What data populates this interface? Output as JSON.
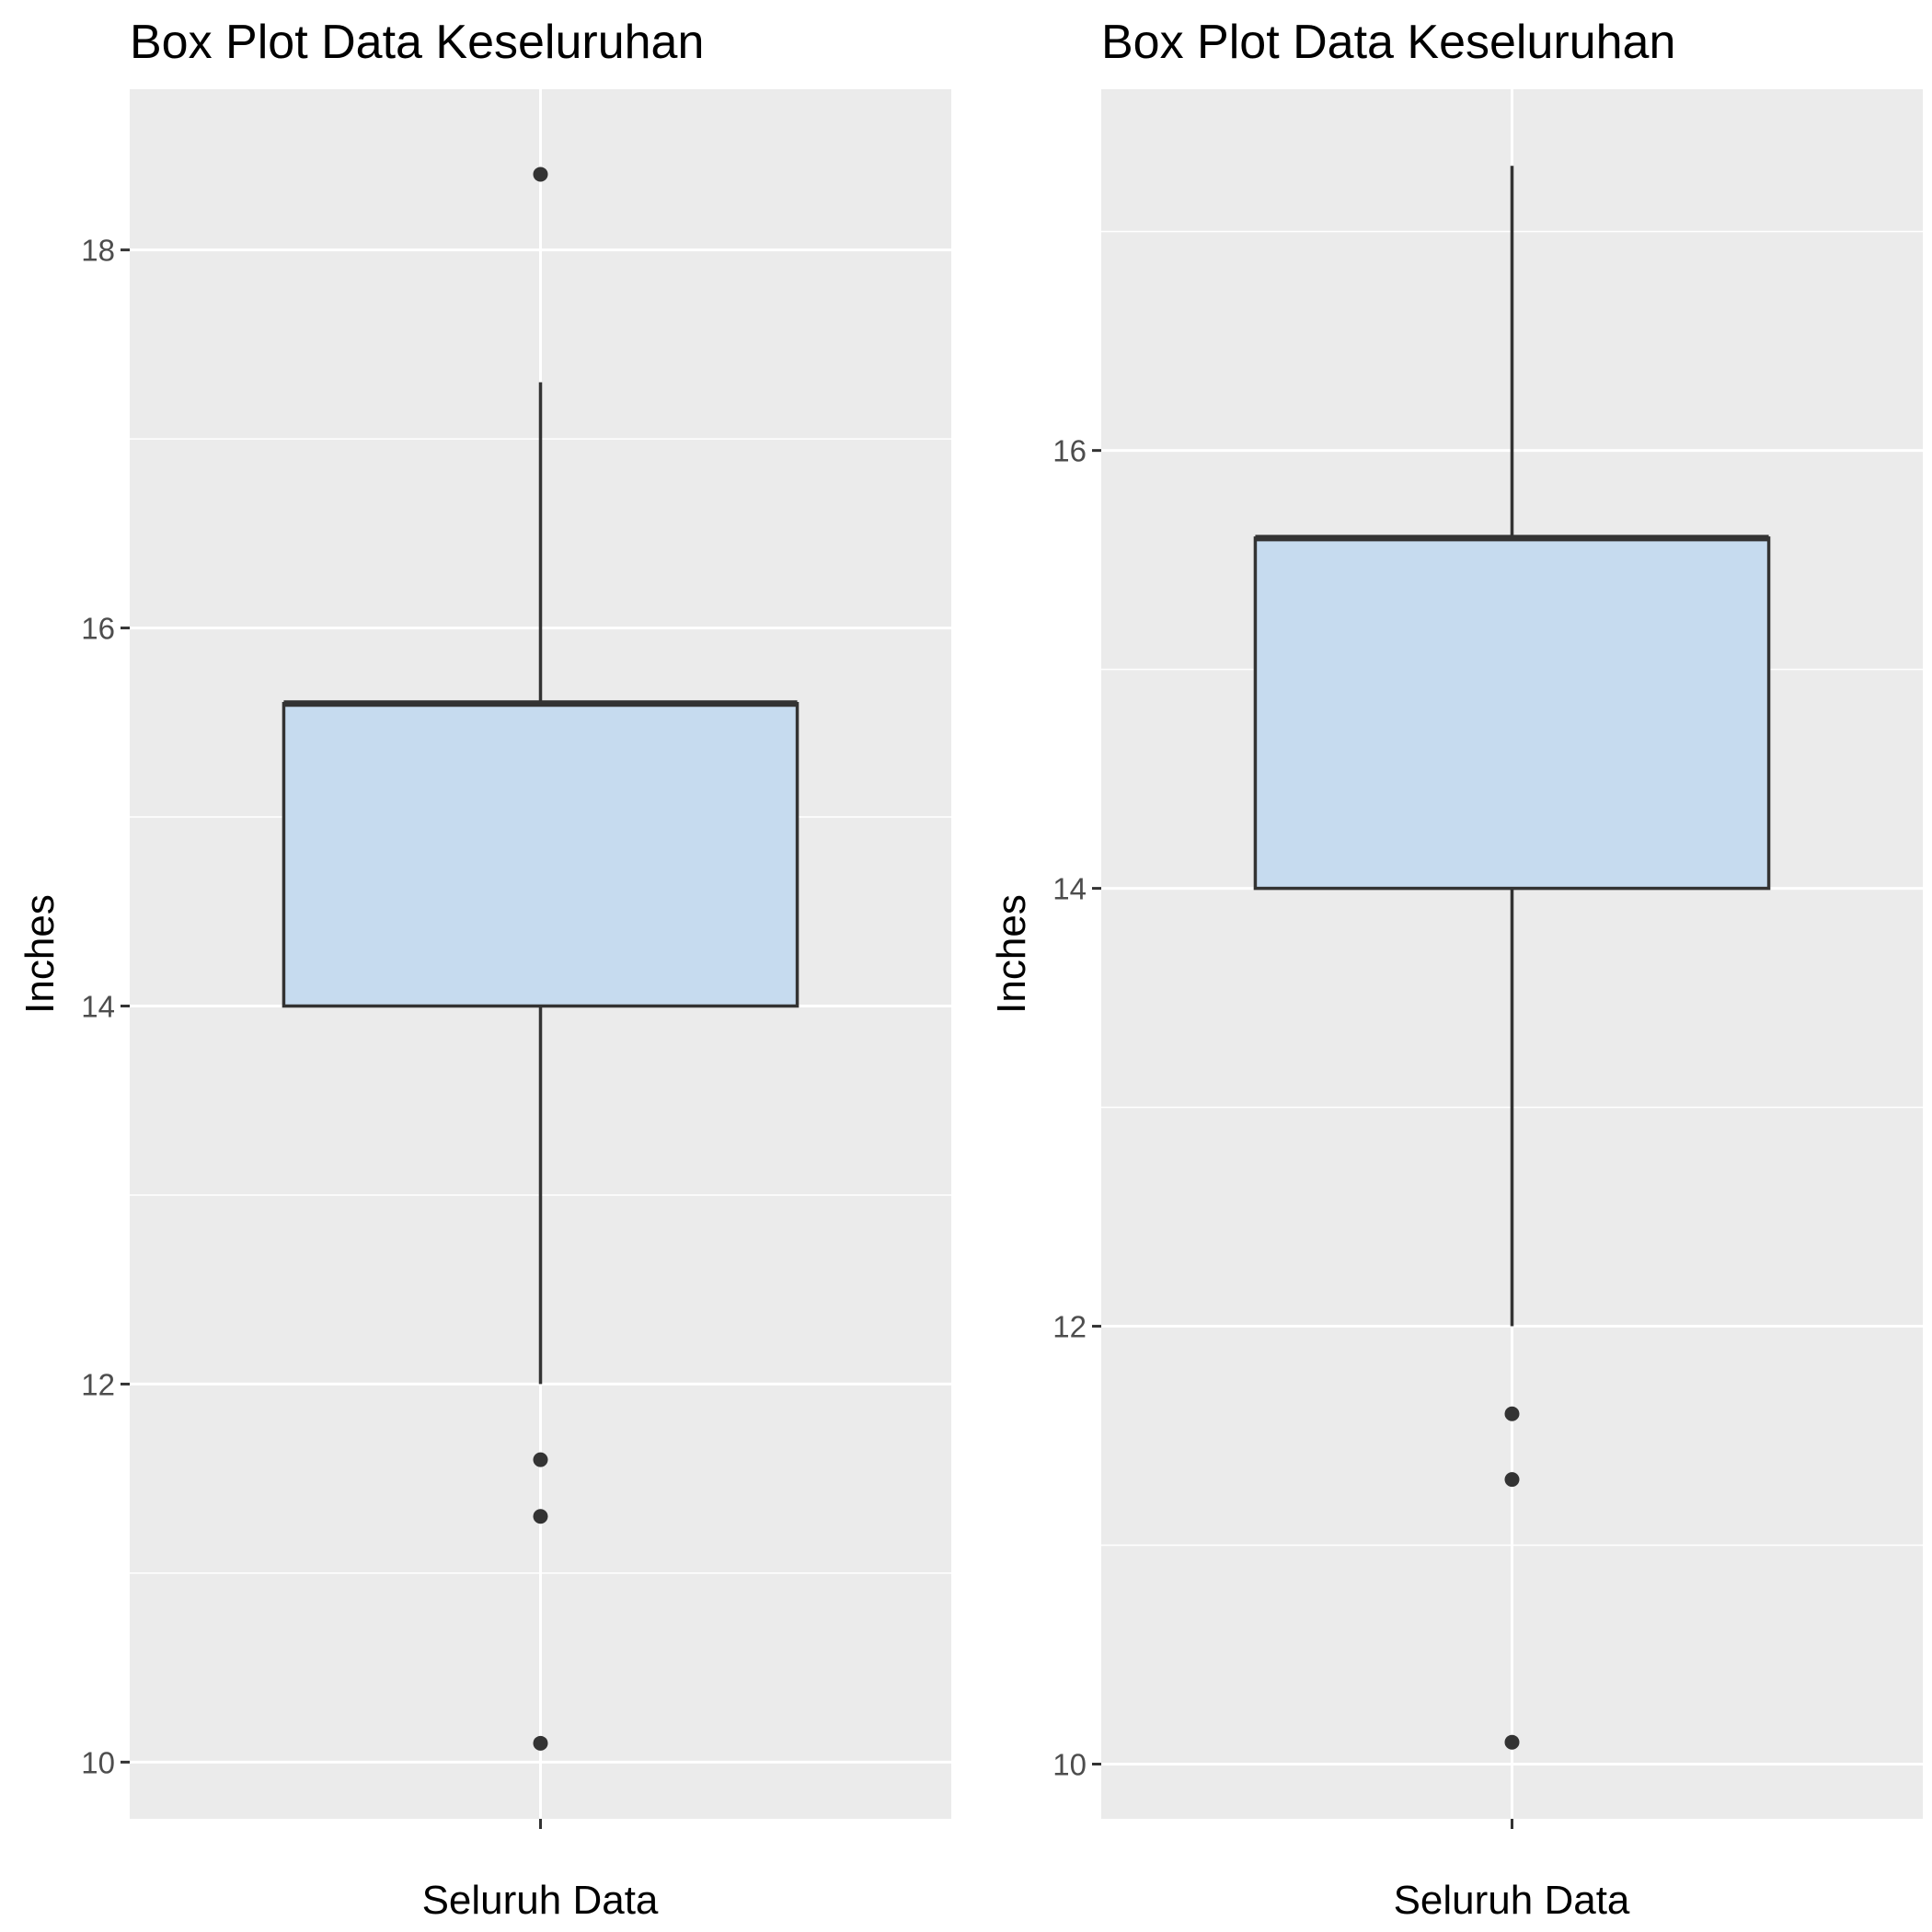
{
  "chart_data": [
    {
      "type": "box",
      "title": "Box Plot Data Keseluruhan",
      "xlabel": "Seluruh Data",
      "ylabel": "Inches",
      "categories": [
        "Seluruh Data"
      ],
      "ylim": [
        9.7,
        18.85
      ],
      "y_ticks": [
        10,
        12,
        14,
        16,
        18
      ],
      "y_tick_labels": [
        "10",
        "12",
        "14",
        "16",
        "18"
      ],
      "grid": true,
      "box": {
        "whisker_low": 12.0,
        "q1": 14.0,
        "median": 15.6,
        "q3": 15.6,
        "whisker_high": 17.3
      },
      "outliers": [
        18.4,
        11.6,
        11.3,
        10.1
      ]
    },
    {
      "type": "box",
      "title": "Box Plot Data Keseluruhan",
      "xlabel": "Seluruh Data",
      "ylabel": "Inches",
      "categories": [
        "Seluruh Data"
      ],
      "ylim": [
        9.75,
        17.65
      ],
      "y_ticks": [
        10,
        12,
        14,
        16
      ],
      "y_tick_labels": [
        "10",
        "12",
        "14",
        "16"
      ],
      "grid": true,
      "box": {
        "whisker_low": 12.0,
        "q1": 14.0,
        "median": 15.6,
        "q3": 15.6,
        "whisker_high": 17.3
      },
      "outliers": [
        11.6,
        11.3,
        10.1
      ]
    }
  ],
  "style": {
    "panel_background": "#ebebeb",
    "grid_color": "#ffffff",
    "box_fill": "#c6dbef",
    "box_stroke": "#333333",
    "point_color": "#333333",
    "tick_color": "#333333"
  }
}
